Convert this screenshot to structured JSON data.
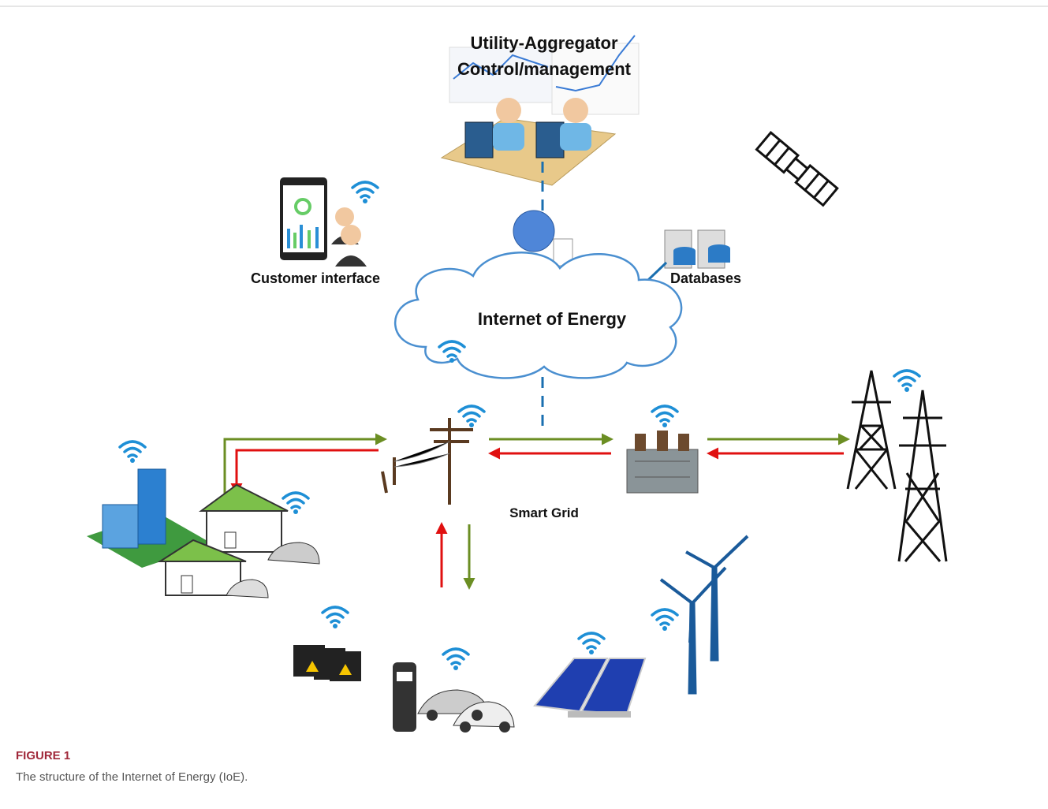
{
  "utility": {
    "lines": [
      "Utility-Aggregator",
      "Control/management"
    ]
  },
  "labels": {
    "customer": "Customer interface",
    "databases": "Databases",
    "cloud": "Internet of Energy",
    "grid": "Smart Grid"
  },
  "figure": {
    "label": "FIGURE 1",
    "caption": "The structure of the Internet of Energy (IoE)."
  }
}
